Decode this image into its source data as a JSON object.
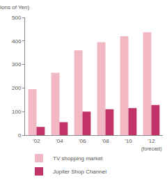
{
  "chart_data": {
    "type": "bar",
    "ylabel": "(Billions of Yen)",
    "categories": [
      "'02",
      "'04",
      "'06",
      "'08",
      "'10",
      "'12"
    ],
    "series": [
      {
        "name": "TV shopping market",
        "color": "#f2b8c3",
        "values": [
          195,
          265,
          360,
          395,
          420,
          437
        ]
      },
      {
        "name": "Jupiter Shop Channel",
        "color": "#c2336a",
        "values": [
          35,
          55,
          100,
          110,
          115,
          128
        ]
      }
    ],
    "annotations": [
      {
        "text": "(forecast)",
        "x": "'12"
      }
    ],
    "ylim": [
      0,
      500
    ],
    "yticks": [
      0,
      100,
      200,
      300,
      400,
      500
    ],
    "grid": false,
    "legend": "bottom"
  }
}
